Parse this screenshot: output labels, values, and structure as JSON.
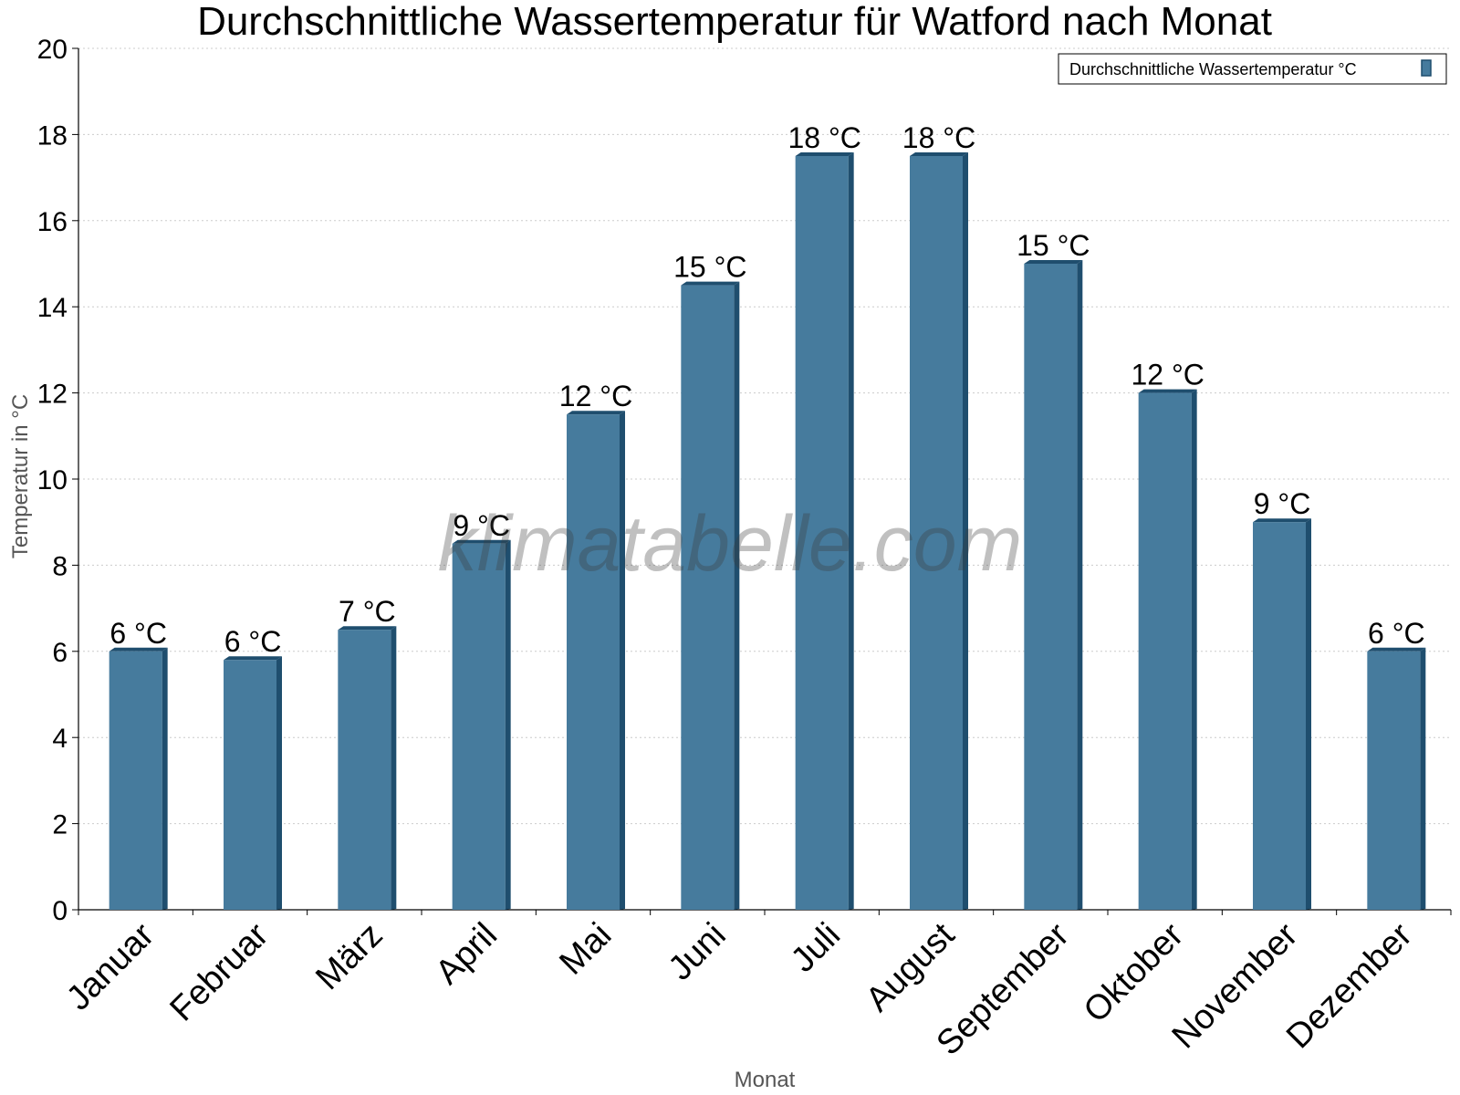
{
  "chart_data": {
    "type": "bar",
    "title": "Durchschnittliche Wassertemperatur für Watford nach Monat",
    "xlabel": "Monat",
    "ylabel": "Temperatur in °C",
    "ylim": [
      0,
      20
    ],
    "yticks": [
      0,
      2,
      4,
      6,
      8,
      10,
      12,
      14,
      16,
      18,
      20
    ],
    "categories": [
      "Januar",
      "Februar",
      "März",
      "April",
      "Mai",
      "Juni",
      "Juli",
      "August",
      "September",
      "Oktober",
      "November",
      "Dezember"
    ],
    "series": [
      {
        "name": "Durchschnittliche Wassertemperatur °C",
        "values": [
          6.0,
          5.8,
          6.5,
          8.5,
          11.5,
          14.5,
          17.5,
          17.5,
          15.0,
          12.0,
          9.0,
          6.0
        ],
        "labels": [
          "6 °C",
          "6 °C",
          "7 °C",
          "9 °C",
          "12 °C",
          "15 °C",
          "18 °C",
          "18 °C",
          "15 °C",
          "12 °C",
          "9 °C",
          "6 °C"
        ]
      }
    ],
    "grid": true,
    "legend_position": "top-right",
    "colors": {
      "bar": "#467b9d",
      "bar_side": "#1f4e6e",
      "grid": "#cccccc",
      "axis": "#000000"
    },
    "watermark": "klimatabelle.com"
  }
}
